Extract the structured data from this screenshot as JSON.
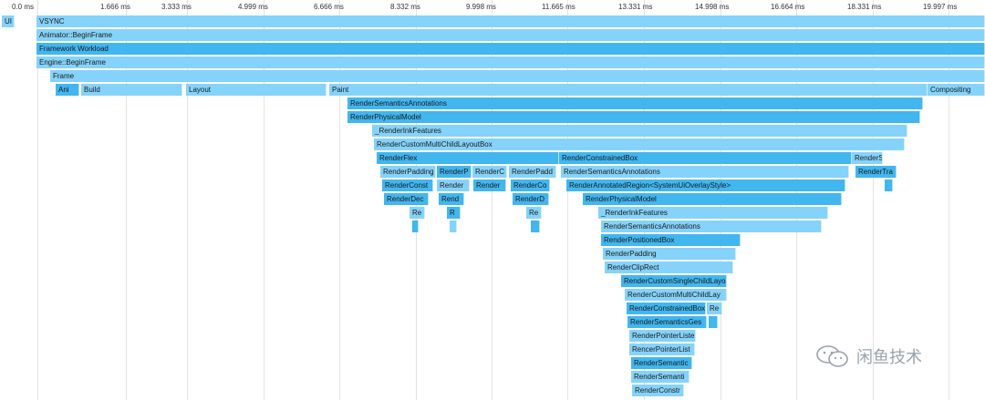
{
  "timeline": {
    "ticks": [
      "0.0 ms",
      "1.666 ms",
      "3.333 ms",
      "4.999 ms",
      "6.666 ms",
      "8.332 ms",
      "9.998 ms",
      "11.665 ms",
      "13.331 ms",
      "14.998 ms",
      "16.664 ms",
      "18.331 ms",
      "19.997 ms"
    ]
  },
  "flame": {
    "bars": [
      {
        "label": "UI",
        "tone": "l"
      },
      {
        "label": "VSYNC",
        "tone": "l"
      },
      {
        "label": "Animator::BeginFrame",
        "tone": "l"
      },
      {
        "label": "Framework Workload",
        "tone": "d"
      },
      {
        "label": "Engine::BeginFrame",
        "tone": "l"
      },
      {
        "label": "Frame",
        "tone": "l"
      },
      {
        "label": "Ani",
        "tone": "d"
      },
      {
        "label": "Build",
        "tone": "l"
      },
      {
        "label": "Layout",
        "tone": "l"
      },
      {
        "label": "Paint",
        "tone": "l"
      },
      {
        "label": "Compositing",
        "tone": "l"
      },
      {
        "label": "RenderSemanticsAnnotations",
        "tone": "d"
      },
      {
        "label": "RenderPhysicalModel",
        "tone": "d"
      },
      {
        "label": "_RenderInkFeatures",
        "tone": "l"
      },
      {
        "label": "RenderCustomMultiChildLayoutBox",
        "tone": "l"
      },
      {
        "label": "RenderFlex",
        "tone": "d"
      },
      {
        "label": "RenderConstrainedBox",
        "tone": "d"
      },
      {
        "label": "RenderStack",
        "tone": "l"
      },
      {
        "label": "RenderPadding",
        "tone": "l"
      },
      {
        "label": "RenderP",
        "tone": "d"
      },
      {
        "label": "RenderC",
        "tone": "l"
      },
      {
        "label": "RenderPadd",
        "tone": "l"
      },
      {
        "label": "RenderSemanticsAnnotations",
        "tone": "l"
      },
      {
        "label": "RenderTra",
        "tone": "d"
      },
      {
        "label": "RenderConst",
        "tone": "d"
      },
      {
        "label": "Render",
        "tone": "l"
      },
      {
        "label": "Render",
        "tone": "d"
      },
      {
        "label": "RenderCo",
        "tone": "d"
      },
      {
        "label": "RenderAnnotatedRegion<SystemUiOverlayStyle>",
        "tone": "d"
      },
      {
        "label": "",
        "tone": "d"
      },
      {
        "label": "RenderDec",
        "tone": "d"
      },
      {
        "label": "Rend",
        "tone": "d"
      },
      {
        "label": "RenderD",
        "tone": "d"
      },
      {
        "label": "RenderPhysicalModel",
        "tone": "d"
      },
      {
        "label": "Re",
        "tone": "l"
      },
      {
        "label": "R",
        "tone": "d"
      },
      {
        "label": "Re",
        "tone": "l"
      },
      {
        "label": "_RenderInkFeatures",
        "tone": "l"
      },
      {
        "label": "",
        "tone": "d"
      },
      {
        "label": "",
        "tone": "l"
      },
      {
        "label": "",
        "tone": "d"
      },
      {
        "label": "RenderSemanticsAnnotations",
        "tone": "l"
      },
      {
        "label": "RenderPositionedBox",
        "tone": "d"
      },
      {
        "label": "RenderPadding",
        "tone": "l"
      },
      {
        "label": "RenderClipRect",
        "tone": "l"
      },
      {
        "label": "RenderCustomSingleChildLayo",
        "tone": "d"
      },
      {
        "label": "RenderCustomMultiChildLay",
        "tone": "l"
      },
      {
        "label": "RenderConstrainedBox",
        "tone": "d"
      },
      {
        "label": "Re",
        "tone": "l"
      },
      {
        "label": "RenderSemanticsGes",
        "tone": "d"
      },
      {
        "label": "",
        "tone": "d"
      },
      {
        "label": "RenderPointerListe",
        "tone": "l"
      },
      {
        "label": "RencerPointerList",
        "tone": "l"
      },
      {
        "label": "RenderSemantic",
        "tone": "d"
      },
      {
        "label": "RenderSemanti",
        "tone": "l"
      },
      {
        "label": "RenderConstr",
        "tone": "l"
      }
    ]
  },
  "watermark": {
    "text": "闲鱼技术"
  },
  "colors": {
    "dark": "#41b6ef",
    "light": "#85d3fa",
    "grid": "#e3e3e3"
  }
}
